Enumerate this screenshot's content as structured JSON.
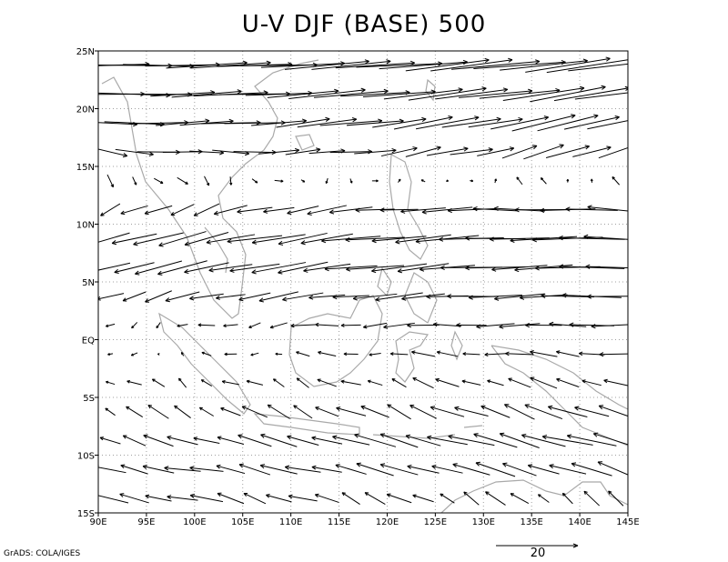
{
  "title": "U-V DJF (BASE) 500",
  "credit": "GrADS: COLA/IGES",
  "colors": {
    "background": "#ffffff",
    "frame": "#000000",
    "vectors": "#000000",
    "coast": "#a9a9a9",
    "grid": "#a0a0a0"
  },
  "chart_data": {
    "type": "vector_field",
    "xlim": [
      90,
      145
    ],
    "ylim": [
      -15,
      25
    ],
    "x_ticks": [
      90,
      95,
      100,
      105,
      110,
      115,
      120,
      125,
      130,
      135,
      140,
      145
    ],
    "x_tick_labels": [
      "90E",
      "95E",
      "100E",
      "105E",
      "110E",
      "115E",
      "120E",
      "125E",
      "130E",
      "135E",
      "140E",
      "145E"
    ],
    "y_ticks": [
      -15,
      -10,
      -5,
      0,
      5,
      10,
      15,
      20,
      25
    ],
    "y_tick_labels": [
      "15S",
      "10S",
      "5S",
      "EQ",
      "5N",
      "10N",
      "15N",
      "20N",
      "25N"
    ],
    "grid": true,
    "grid_style": "dotted",
    "reference_vector": {
      "magnitude": 20,
      "label": "20",
      "placement": "bottom-right"
    },
    "grid_spacing_deg": 2.5,
    "field_profile": [
      {
        "lat": 24,
        "u_west": 36,
        "u_east": 45,
        "v_west": 0,
        "v_east": 6
      },
      {
        "lat": 22,
        "u_west": 34,
        "u_east": 42,
        "v_west": 0,
        "v_east": 6
      },
      {
        "lat": 20,
        "u_west": 30,
        "u_east": 34,
        "v_west": 0,
        "v_east": 7
      },
      {
        "lat": 17,
        "u_west": 24,
        "u_east": 22,
        "v_west": -1,
        "v_east": 8
      },
      {
        "lat": 15,
        "u_west": 10,
        "u_east": 14,
        "v_west": -5,
        "v_east": 5
      },
      {
        "lat": 12,
        "u_west": -4,
        "u_east": -25,
        "v_west": -5,
        "v_east": 2
      },
      {
        "lat": 10,
        "u_west": -20,
        "u_east": -35,
        "v_west": -7,
        "v_east": 1
      },
      {
        "lat": 7,
        "u_west": -22,
        "u_east": -32,
        "v_west": -6,
        "v_east": 0
      },
      {
        "lat": 5,
        "u_west": -18,
        "u_east": -30,
        "v_west": -6,
        "v_east": 0
      },
      {
        "lat": 2,
        "u_west": -4,
        "u_east": -25,
        "v_west": -2,
        "v_east": 0
      },
      {
        "lat": 0,
        "u_west": 2,
        "u_east": -18,
        "v_west": -1,
        "v_east": 0
      },
      {
        "lat": -3,
        "u_west": -4,
        "u_east": -10,
        "v_west": 2,
        "v_east": 3
      },
      {
        "lat": -6,
        "u_west": -6,
        "u_east": -18,
        "v_west": 5,
        "v_east": 6
      },
      {
        "lat": -8,
        "u_west": -10,
        "u_east": -24,
        "v_west": 4,
        "v_east": 6
      },
      {
        "lat": -10,
        "u_west": -14,
        "u_east": -24,
        "v_west": 3,
        "v_east": 6
      },
      {
        "lat": -12,
        "u_west": -16,
        "u_east": -14,
        "v_west": 2,
        "v_east": 6
      },
      {
        "lat": -14,
        "u_west": -16,
        "u_east": -4,
        "v_west": 3,
        "v_east": 6
      }
    ]
  }
}
